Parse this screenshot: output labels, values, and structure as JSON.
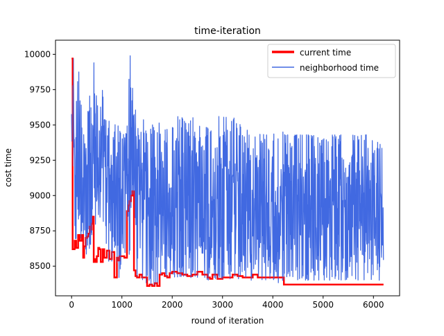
{
  "chart_data": {
    "type": "line",
    "title": "time-iteration",
    "xlabel": "round of iteration",
    "ylabel": "cost time",
    "xlim": [
      -320,
      6520
    ],
    "ylim": [
      8290,
      10100
    ],
    "x_ticks": [
      0,
      1000,
      2000,
      3000,
      4000,
      5000,
      6000
    ],
    "y_ticks": [
      8500,
      8750,
      9000,
      9250,
      9500,
      9750,
      10000
    ],
    "grid": false,
    "legend_position": "top-right",
    "series": [
      {
        "name": "current time",
        "color": "#ff0000",
        "x": [
          0,
          20,
          60,
          90,
          130,
          160,
          200,
          230,
          250,
          280,
          310,
          330,
          360,
          380,
          400,
          420,
          440,
          460,
          480,
          500,
          530,
          550,
          580,
          620,
          650,
          700,
          750,
          800,
          850,
          880,
          900,
          930,
          950,
          1000,
          1050,
          1100,
          1130,
          1150,
          1180,
          1210,
          1240,
          1270,
          1300,
          1350,
          1400,
          1450,
          1500,
          1550,
          1600,
          1650,
          1700,
          1750,
          1800,
          1850,
          1900,
          1950,
          2000,
          2100,
          2200,
          2300,
          2400,
          2500,
          2600,
          2700,
          2750,
          2800,
          2900,
          3000,
          3100,
          3200,
          3300,
          3400,
          3500,
          3600,
          3700,
          3800,
          3900,
          4000,
          4100,
          4200,
          4220,
          4250,
          4500,
          5000,
          5500,
          6000,
          6200
        ],
        "values": [
          9970,
          8620,
          8680,
          8630,
          8720,
          8680,
          8720,
          8560,
          8640,
          8700,
          8710,
          8730,
          8780,
          8760,
          8800,
          8850,
          8530,
          8550,
          8530,
          8570,
          8630,
          8620,
          8530,
          8620,
          8560,
          8610,
          8550,
          8600,
          8420,
          8420,
          8560,
          8540,
          8570,
          8570,
          8560,
          8890,
          8930,
          8960,
          9000,
          9030,
          8470,
          8430,
          8420,
          8440,
          8420,
          8420,
          8360,
          8370,
          8360,
          8380,
          8360,
          8440,
          8450,
          8430,
          8420,
          8450,
          8460,
          8450,
          8440,
          8430,
          8440,
          8460,
          8440,
          8420,
          8410,
          8440,
          8410,
          8420,
          8420,
          8440,
          8430,
          8420,
          8420,
          8440,
          8420,
          8420,
          8420,
          8420,
          8420,
          8420,
          8370,
          8370,
          8370,
          8370,
          8370,
          8370,
          8370
        ]
      },
      {
        "name": "neighborhood time",
        "color": "#4169e1",
        "x": [
          0,
          30,
          60,
          100,
          150,
          200,
          250,
          300,
          350,
          400,
          450,
          500,
          550,
          600,
          650,
          700,
          750,
          800,
          850,
          900,
          950,
          1000,
          1050,
          1100,
          1150,
          1200,
          1250,
          1300,
          1400,
          1500,
          1600,
          1700,
          1800,
          1900,
          2000,
          2100,
          2200,
          2300,
          2400,
          2500,
          2600,
          2700,
          2800,
          2900,
          3000,
          3100,
          3200,
          3300,
          3400,
          3500,
          3600,
          3700,
          3800,
          3900,
          4000,
          4100,
          4200,
          4300,
          4400,
          4600,
          4800,
          5000,
          5200,
          5400,
          5600,
          5800,
          6000,
          6200
        ],
        "max": [
          9600,
          10060,
          9800,
          9700,
          10000,
          9600,
          9580,
          9700,
          9800,
          9650,
          9980,
          9700,
          9500,
          9800,
          9600,
          9500,
          9600,
          9500,
          9500,
          9550,
          9470,
          9440,
          9440,
          9530,
          10010,
          10010,
          9700,
          9490,
          9560,
          9480,
          9500,
          9560,
          9450,
          9480,
          9480,
          9560,
          9560,
          9490,
          9560,
          9520,
          9500,
          9500,
          9500,
          9560,
          9560,
          9560,
          9560,
          9560,
          9500,
          9460,
          9450,
          9460,
          9440,
          9440,
          9440,
          9450,
          9450,
          9430,
          9430,
          9430,
          9430,
          9430,
          9430,
          9430,
          9430,
          9430,
          9430,
          9330
        ],
        "min": [
          9540,
          8620,
          8680,
          8630,
          8700,
          8660,
          8700,
          8560,
          8620,
          8680,
          8700,
          8720,
          8760,
          8750,
          8780,
          8520,
          8540,
          8520,
          8560,
          8420,
          8420,
          8560,
          8540,
          8560,
          8560,
          8880,
          8960,
          8420,
          8400,
          8360,
          8360,
          8360,
          8420,
          8420,
          8420,
          8420,
          8420,
          8410,
          8420,
          8420,
          8410,
          8400,
          8410,
          8410,
          8410,
          8410,
          8410,
          8410,
          8410,
          8400,
          8400,
          8400,
          8400,
          8400,
          8400,
          8380,
          8400,
          8400,
          8400,
          8400,
          8400,
          8400,
          8400,
          8400,
          8400,
          8400,
          8400,
          8400
        ]
      }
    ]
  }
}
